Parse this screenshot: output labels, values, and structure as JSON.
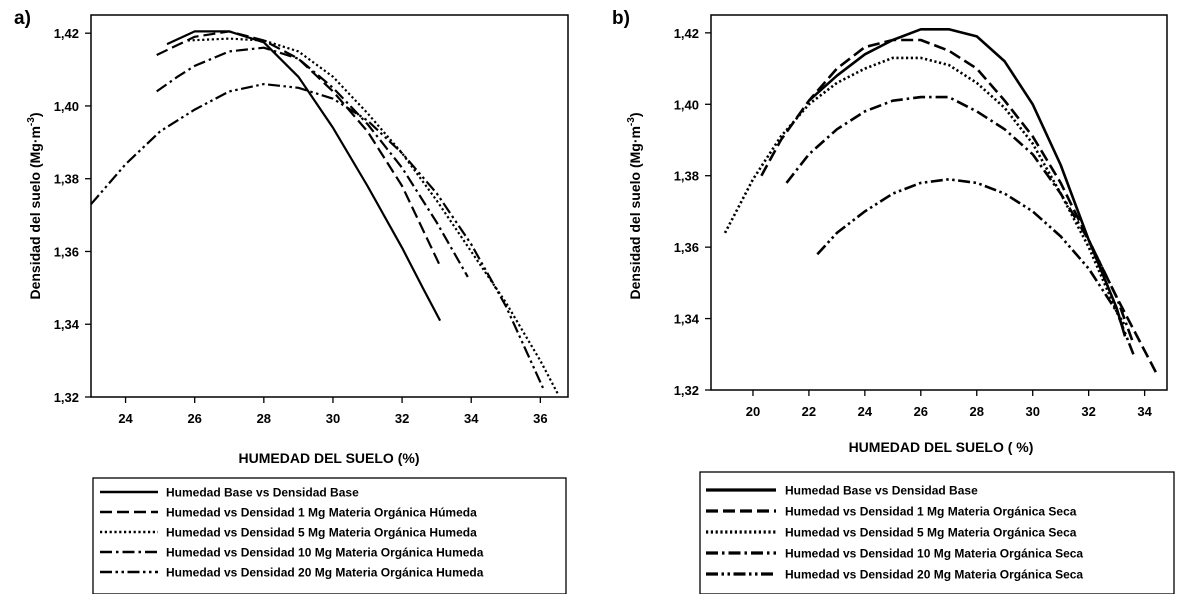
{
  "chart_data": [
    {
      "type": "line",
      "panel_label": "a)",
      "xlabel": "HUMEDAD DEL SUELO (%)",
      "ylabel": "Densidad del suelo (Mg·m",
      "ylabel_sup": "-3",
      "ylabel_close": ")",
      "xlim": [
        23,
        36.8
      ],
      "ylim": [
        1.32,
        1.425
      ],
      "xticks": [
        24,
        26,
        28,
        30,
        32,
        34,
        36
      ],
      "yticks": [
        1.32,
        1.34,
        1.36,
        1.38,
        1.4,
        1.42
      ],
      "xtick_labels": [
        "24",
        "26",
        "28",
        "30",
        "32",
        "34",
        "36"
      ],
      "ytick_labels": [
        "1,32",
        "1,34",
        "1,36",
        "1,38",
        "1,40",
        "1,42"
      ],
      "grid": false,
      "legend_position": "below",
      "series": [
        {
          "name": "Humedad Base vs Densidad Base",
          "dash": "solid",
          "x": [
            25.2,
            26.0,
            27.0,
            28.0,
            29.0,
            30.0,
            31.0,
            32.0,
            32.6,
            33.1
          ],
          "y": [
            1.417,
            1.4205,
            1.4205,
            1.4175,
            1.408,
            1.394,
            1.378,
            1.361,
            1.35,
            1.341
          ]
        },
        {
          "name": "Humedad vs Densidad   1 Mg Materia Orgánica Húmeda",
          "dash": "long",
          "x": [
            24.9,
            26.0,
            27.0,
            28.0,
            29.0,
            30.0,
            31.0,
            32.0,
            33.1
          ],
          "y": [
            1.414,
            1.419,
            1.4205,
            1.418,
            1.413,
            1.404,
            1.393,
            1.378,
            1.356
          ]
        },
        {
          "name": "Humedad vs Densidad   5 Mg Materia Orgánica Humeda",
          "dash": "dot",
          "x": [
            25.8,
            27.0,
            28.0,
            29.0,
            30.0,
            31.0,
            32.0,
            33.0,
            34.0,
            35.0,
            36.0,
            36.5
          ],
          "y": [
            1.418,
            1.4185,
            1.418,
            1.415,
            1.408,
            1.398,
            1.387,
            1.374,
            1.36,
            1.346,
            1.33,
            1.321
          ]
        },
        {
          "name": "Humedad vs Densidad 10 Mg Materia Orgánica Humeda",
          "dash": "dashdot",
          "x": [
            24.9,
            25.5,
            26.0,
            27.0,
            28.0,
            29.0,
            30.0,
            31.0,
            32.0,
            33.0,
            33.9
          ],
          "y": [
            1.404,
            1.408,
            1.411,
            1.415,
            1.416,
            1.413,
            1.405,
            1.395,
            1.383,
            1.368,
            1.353
          ]
        },
        {
          "name": "Humedad vs Densidad 20 Mg Materia Orgánica Humeda",
          "dash": "dashdotdot",
          "x": [
            23.0,
            24.0,
            25.0,
            26.0,
            27.0,
            28.0,
            29.0,
            30.0,
            31.0,
            32.0,
            33.0,
            34.0,
            35.0,
            36.1
          ],
          "y": [
            1.373,
            1.384,
            1.393,
            1.399,
            1.404,
            1.406,
            1.405,
            1.402,
            1.396,
            1.387,
            1.376,
            1.362,
            1.345,
            1.322
          ]
        }
      ]
    },
    {
      "type": "line",
      "panel_label": "b)",
      "xlabel": "HUMEDAD DEL SUELO ( %)",
      "ylabel": "Densidad del suelo (Mg·m",
      "ylabel_sup": "-3",
      "ylabel_close": ")",
      "xlim": [
        18.5,
        34.8
      ],
      "ylim": [
        1.32,
        1.425
      ],
      "xticks": [
        20,
        22,
        24,
        26,
        28,
        30,
        32,
        34
      ],
      "yticks": [
        1.32,
        1.34,
        1.36,
        1.38,
        1.4,
        1.42
      ],
      "xtick_labels": [
        "20",
        "22",
        "24",
        "26",
        "28",
        "30",
        "32",
        "34"
      ],
      "ytick_labels": [
        "1,32",
        "1,34",
        "1,36",
        "1,38",
        "1,40",
        "1,42"
      ],
      "grid": false,
      "legend_position": "below",
      "series": [
        {
          "name": "Humedad Base vs Densidad Base",
          "dash": "solid",
          "x": [
            22.0,
            23.0,
            24.0,
            25.0,
            26.0,
            27.0,
            28.0,
            29.0,
            30.0,
            31.0,
            32.0,
            33.0,
            33.3
          ],
          "y": [
            1.401,
            1.408,
            1.414,
            1.418,
            1.421,
            1.421,
            1.419,
            1.412,
            1.4,
            1.383,
            1.362,
            1.343,
            1.335
          ]
        },
        {
          "name": "Humedad vs Densidad   1 Mg Materia Orgánica Seca",
          "dash": "long",
          "x": [
            20.3,
            21.0,
            22.0,
            23.0,
            24.0,
            25.0,
            26.0,
            27.0,
            28.0,
            29.0,
            30.0,
            31.0,
            32.0,
            33.0,
            34.4
          ],
          "y": [
            1.38,
            1.39,
            1.401,
            1.41,
            1.416,
            1.418,
            1.418,
            1.415,
            1.41,
            1.401,
            1.391,
            1.378,
            1.362,
            1.346,
            1.325
          ]
        },
        {
          "name": "Humedad vs Densidad   5 Mg Materia Orgánica Seca",
          "dash": "dot",
          "x": [
            19.0,
            20.0,
            21.0,
            22.0,
            23.0,
            24.0,
            25.0,
            26.0,
            27.0,
            28.0,
            29.0,
            30.0,
            31.0,
            32.0,
            33.0,
            33.3
          ],
          "y": [
            1.364,
            1.379,
            1.391,
            1.4,
            1.406,
            1.41,
            1.413,
            1.413,
            1.411,
            1.406,
            1.399,
            1.389,
            1.375,
            1.36,
            1.342,
            1.338
          ]
        },
        {
          "name": "Humedad vs Densidad 10 Mg Materia Orgánica Seca",
          "dash": "dashdot",
          "x": [
            21.2,
            22.0,
            23.0,
            24.0,
            25.0,
            26.0,
            27.0,
            28.0,
            29.0,
            30.0,
            31.0,
            32.0,
            33.0,
            33.6
          ],
          "y": [
            1.378,
            1.386,
            1.393,
            1.398,
            1.401,
            1.402,
            1.402,
            1.398,
            1.393,
            1.386,
            1.375,
            1.362,
            1.346,
            1.333
          ]
        },
        {
          "name": "Humedad vs Densidad 20 Mg Materia Orgánica Seca",
          "dash": "dashdotdot",
          "x": [
            22.3,
            23.0,
            24.0,
            25.0,
            26.0,
            27.0,
            28.0,
            29.0,
            30.0,
            31.0,
            32.0,
            33.0,
            33.6
          ],
          "y": [
            1.358,
            1.364,
            1.37,
            1.375,
            1.378,
            1.379,
            1.378,
            1.375,
            1.37,
            1.363,
            1.354,
            1.342,
            1.33
          ]
        }
      ]
    }
  ]
}
